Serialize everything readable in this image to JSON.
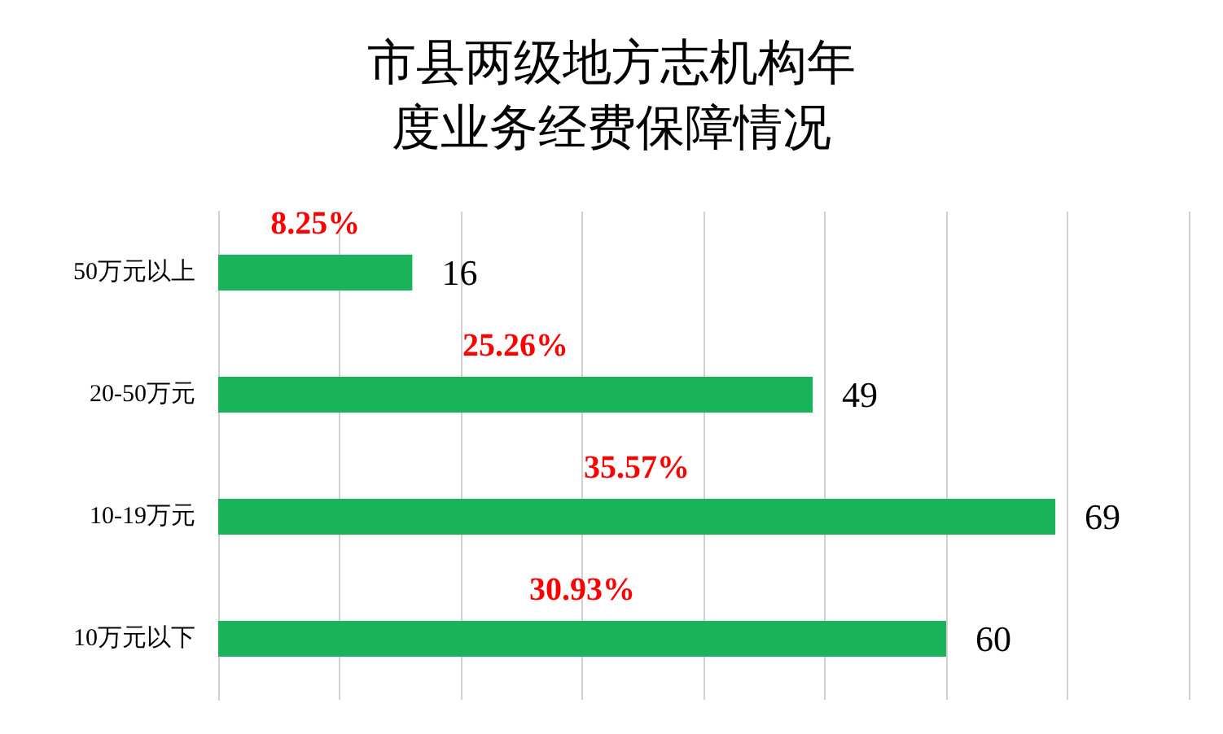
{
  "chart_data": {
    "type": "bar",
    "orientation": "horizontal",
    "title": "市县两级地方志机构年度业务经费保障情况",
    "categories": [
      "50万元以上",
      "20-50万元",
      "10-19万元",
      "10万元以下"
    ],
    "values": [
      16,
      49,
      69,
      60
    ],
    "color": "#19b45a",
    "data_labels": true,
    "xlim": [
      0,
      80
    ],
    "xticks": [
      {
        "value": 0,
        "label": null
      },
      {
        "value": 10,
        "label": null
      },
      {
        "value": 20,
        "label": null
      },
      {
        "value": 30,
        "label": null
      },
      {
        "value": 40,
        "label": null
      },
      {
        "value": 50,
        "label": null
      },
      {
        "value": 60,
        "label": null
      },
      {
        "value": 70,
        "label": null
      },
      {
        "value": 80,
        "label": null
      }
    ],
    "tick_labels": "y",
    "grid": "x",
    "annotations": [
      "8.25%",
      "25.26%",
      "35.57%",
      "30.93%"
    ]
  }
}
